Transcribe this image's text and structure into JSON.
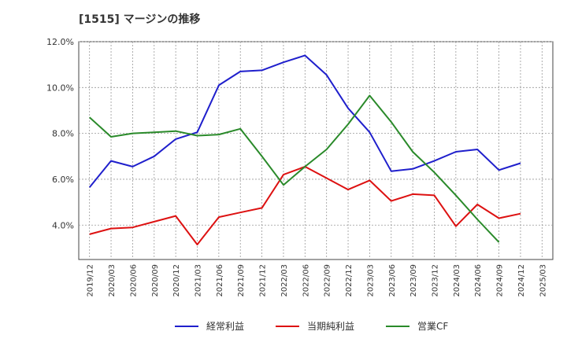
{
  "chart_data": {
    "type": "line",
    "title": "[1515]  マージンの推移",
    "xlabel": "",
    "ylabel": "",
    "ylim": [
      2.5,
      12.0
    ],
    "y_ticks": [
      4.0,
      6.0,
      8.0,
      10.0,
      12.0
    ],
    "y_tick_labels": [
      "4.0%",
      "6.0%",
      "8.0%",
      "10.0%",
      "12.0%"
    ],
    "categories": [
      "2019/12",
      "2020/03",
      "2020/06",
      "2020/09",
      "2020/12",
      "2021/03",
      "2021/06",
      "2021/09",
      "2021/12",
      "2022/03",
      "2022/06",
      "2022/09",
      "2022/12",
      "2023/03",
      "2023/06",
      "2023/09",
      "2023/12",
      "2024/03",
      "2024/06",
      "2024/09",
      "2024/12",
      "2025/03"
    ],
    "grid": true,
    "legend_position": "bottom",
    "series": [
      {
        "name": "経常利益",
        "color": "#1f1fcc",
        "values": [
          5.65,
          6.8,
          6.55,
          7.0,
          7.75,
          8.05,
          10.1,
          10.7,
          10.75,
          11.1,
          11.4,
          10.55,
          9.1,
          8.05,
          6.35,
          6.45,
          6.8,
          7.2,
          7.3,
          6.4,
          6.7,
          null
        ]
      },
      {
        "name": "当期純利益",
        "color": "#dd1111",
        "values": [
          3.6,
          3.85,
          3.9,
          4.15,
          4.4,
          3.15,
          4.35,
          4.55,
          4.75,
          6.2,
          6.55,
          6.05,
          5.55,
          5.95,
          5.05,
          5.35,
          5.3,
          3.95,
          4.9,
          4.3,
          4.5,
          null
        ]
      },
      {
        "name": "営業CF",
        "color": "#2a8a2a",
        "values": [
          8.7,
          7.85,
          8.0,
          8.05,
          8.1,
          7.9,
          7.95,
          8.2,
          7.0,
          5.75,
          6.55,
          7.3,
          8.4,
          9.65,
          8.5,
          7.2,
          6.3,
          5.3,
          4.25,
          3.25,
          null,
          null
        ]
      }
    ]
  }
}
